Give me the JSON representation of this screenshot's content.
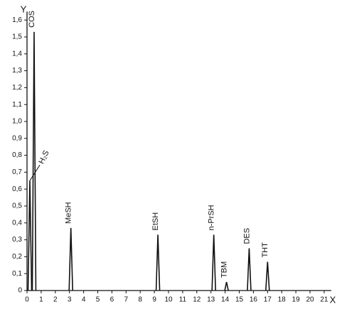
{
  "chart_data": {
    "type": "peaks",
    "x_label": "X",
    "y_label": "Y",
    "xlim": [
      0,
      21.5
    ],
    "ylim": [
      0,
      1.65
    ],
    "xticks": [
      0,
      1,
      2,
      3,
      4,
      5,
      6,
      7,
      8,
      9,
      10,
      11,
      12,
      13,
      14,
      15,
      16,
      17,
      18,
      19,
      20,
      21
    ],
    "yticks": [
      0,
      {
        "value": 0.1,
        "label": "0,1"
      },
      {
        "value": 0.2,
        "label": "0,2"
      },
      {
        "value": 0.3,
        "label": "0,3"
      },
      {
        "value": 0.4,
        "label": "0,4"
      },
      {
        "value": 0.5,
        "label": "0,5"
      },
      {
        "value": 0.6,
        "label": "0,6"
      },
      {
        "value": 0.7,
        "label": "0,7"
      },
      {
        "value": 0.8,
        "label": "0,8"
      },
      {
        "value": 0.9,
        "label": "0,9"
      },
      {
        "value": 1.0,
        "label": "1,0"
      },
      {
        "value": 1.1,
        "label": "1,1"
      },
      {
        "value": 1.2,
        "label": "1,2"
      },
      {
        "value": 1.3,
        "label": "1,3"
      },
      {
        "value": 1.4,
        "label": "1,4"
      },
      {
        "value": 1.5,
        "label": "1,5"
      },
      {
        "value": 1.6,
        "label": "1,6"
      }
    ],
    "peaks": [
      {
        "label": "H₂S",
        "x": 0.2,
        "height": 0.65
      },
      {
        "label": "COS",
        "x": 0.5,
        "height": 1.53
      },
      {
        "label": "MeSH",
        "x": 3.1,
        "height": 0.37
      },
      {
        "label": "EtSH",
        "x": 9.25,
        "height": 0.33
      },
      {
        "label": "n-PrSH",
        "x": 13.2,
        "height": 0.33
      },
      {
        "label": "TBM",
        "x": 14.1,
        "height": 0.05
      },
      {
        "label": "DES",
        "x": 15.7,
        "height": 0.25
      },
      {
        "label": "THT",
        "x": 17.0,
        "height": 0.17
      }
    ],
    "color": "#111111"
  }
}
